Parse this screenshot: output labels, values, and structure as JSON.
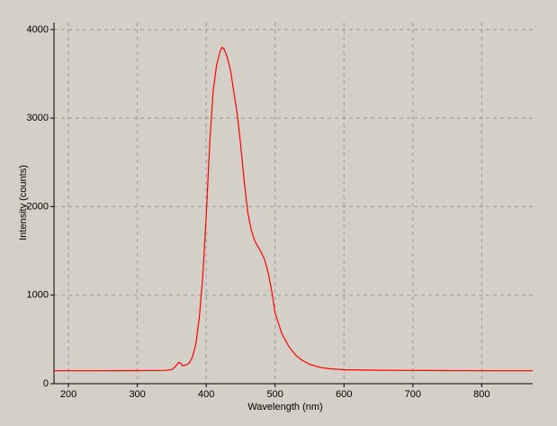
{
  "chart_data": {
    "type": "line",
    "xlabel": "Wavelength (nm)",
    "ylabel": "Intensity (counts)",
    "x": [
      179,
      250,
      300,
      340,
      350,
      355,
      360,
      363,
      366,
      370,
      375,
      380,
      385,
      390,
      395,
      400,
      405,
      410,
      415,
      420,
      423,
      426,
      430,
      435,
      440,
      445,
      450,
      455,
      460,
      465,
      470,
      475,
      480,
      485,
      490,
      495,
      500,
      510,
      520,
      530,
      540,
      550,
      560,
      570,
      580,
      600,
      650,
      700,
      750,
      800,
      874
    ],
    "values": [
      145,
      145,
      148,
      150,
      160,
      190,
      240,
      230,
      200,
      210,
      230,
      300,
      450,
      750,
      1200,
      1900,
      2700,
      3300,
      3600,
      3750,
      3800,
      3780,
      3700,
      3550,
      3300,
      3050,
      2700,
      2300,
      1950,
      1750,
      1620,
      1550,
      1480,
      1400,
      1250,
      1050,
      800,
      560,
      420,
      320,
      260,
      220,
      195,
      178,
      168,
      158,
      152,
      150,
      148,
      146,
      145
    ],
    "color": "#ff0000",
    "xlim": [
      179,
      874
    ],
    "xticks": [
      200,
      300,
      400,
      500,
      600,
      700,
      800
    ],
    "ylim": [
      0,
      4080
    ],
    "yticks": [
      0,
      1000,
      2000,
      3000,
      4000
    ],
    "grid": true
  }
}
